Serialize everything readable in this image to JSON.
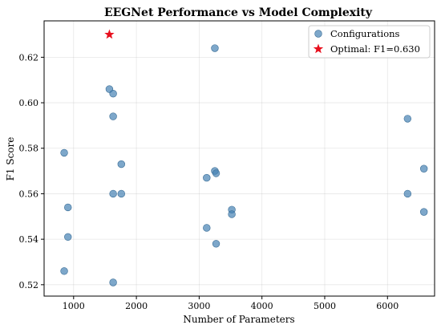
{
  "chart_data": {
    "type": "scatter",
    "title": "EEGNet Performance vs Model Complexity",
    "xlabel": "Number of Parameters",
    "ylabel": "F1 Score",
    "xlim": [
      530,
      6750
    ],
    "ylim": [
      0.515,
      0.636
    ],
    "xticks": [
      1000,
      2000,
      3000,
      4000,
      5000,
      6000
    ],
    "yticks": [
      0.52,
      0.54,
      0.56,
      0.58,
      0.6,
      0.62
    ],
    "ytick_labels": [
      "0.52",
      "0.54",
      "0.56",
      "0.58",
      "0.60",
      "0.62"
    ],
    "grid": true,
    "legend_position": "top-right",
    "series": [
      {
        "name": "Configurations",
        "color": "#4682b4",
        "marker": "circle",
        "points": [
          {
            "x": 850,
            "y": 0.578
          },
          {
            "x": 850,
            "y": 0.526
          },
          {
            "x": 910,
            "y": 0.554
          },
          {
            "x": 910,
            "y": 0.541
          },
          {
            "x": 1570,
            "y": 0.606
          },
          {
            "x": 1630,
            "y": 0.604
          },
          {
            "x": 1630,
            "y": 0.594
          },
          {
            "x": 1630,
            "y": 0.56
          },
          {
            "x": 1630,
            "y": 0.521
          },
          {
            "x": 1760,
            "y": 0.573
          },
          {
            "x": 1760,
            "y": 0.56
          },
          {
            "x": 3120,
            "y": 0.567
          },
          {
            "x": 3120,
            "y": 0.545
          },
          {
            "x": 3250,
            "y": 0.624
          },
          {
            "x": 3250,
            "y": 0.57
          },
          {
            "x": 3270,
            "y": 0.569
          },
          {
            "x": 3270,
            "y": 0.538
          },
          {
            "x": 3520,
            "y": 0.553
          },
          {
            "x": 3520,
            "y": 0.551
          },
          {
            "x": 6320,
            "y": 0.593
          },
          {
            "x": 6320,
            "y": 0.56
          },
          {
            "x": 6580,
            "y": 0.571
          },
          {
            "x": 6580,
            "y": 0.552
          }
        ]
      },
      {
        "name": "Optimal: F1=0.630",
        "color": "#e8101e",
        "marker": "star",
        "points": [
          {
            "x": 1570,
            "y": 0.63
          }
        ]
      }
    ]
  }
}
